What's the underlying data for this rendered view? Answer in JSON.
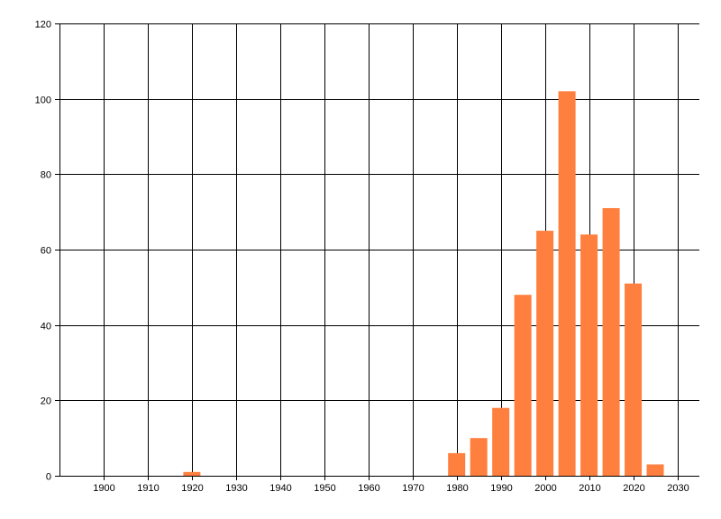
{
  "chart_data": {
    "type": "bar",
    "x": [
      1920,
      1980,
      1985,
      1990,
      1995,
      2000,
      2005,
      2010,
      2015,
      2020,
      2025
    ],
    "values": [
      1,
      6,
      10,
      18,
      48,
      65,
      102,
      64,
      71,
      51,
      3
    ],
    "xlim": [
      1890,
      2035
    ],
    "ylim": [
      0,
      120
    ],
    "x_ticks": [
      "1900",
      "1910",
      "1920",
      "1930",
      "1940",
      "1950",
      "1960",
      "1970",
      "1980",
      "1990",
      "2000",
      "2010",
      "2020",
      "2030"
    ],
    "y_ticks": [
      "0",
      "20",
      "40",
      "60",
      "80",
      "100",
      "120"
    ],
    "bar_color": "#ff7f3f",
    "grid": true,
    "legend": "none"
  }
}
